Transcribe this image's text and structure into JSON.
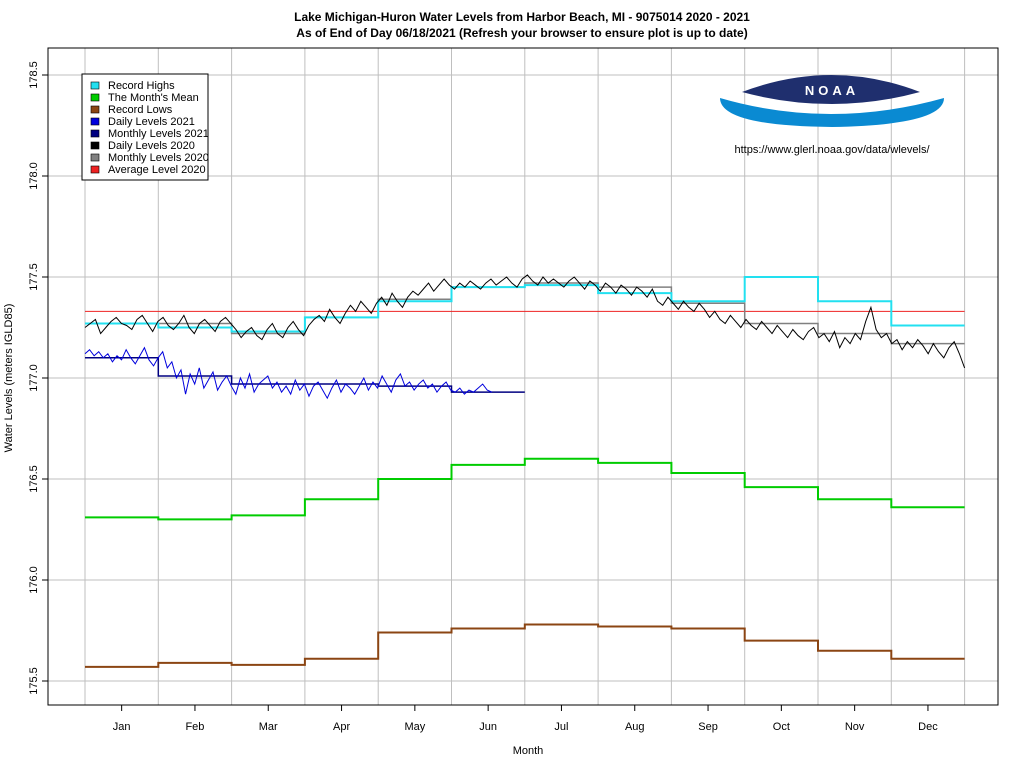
{
  "chart_data": {
    "type": "line",
    "title": "Lake Michigan-Huron Water Levels from Harbor Beach, MI - 9075014 2020 - 2021",
    "subtitle": "As of End of Day 06/18/2021 (Refresh your browser to ensure plot is up to date)",
    "xlabel": "Month",
    "ylabel": "Water Levels (meters IGLD85)",
    "ylim": [
      175.5,
      178.6
    ],
    "yticks": [
      "175.5",
      "176.0",
      "176.5",
      "177.0",
      "177.5",
      "178.0",
      "178.5"
    ],
    "ytick_values": [
      175.5,
      176.0,
      176.5,
      177.0,
      177.5,
      178.0,
      178.5
    ],
    "months": [
      "Jan",
      "Feb",
      "Mar",
      "Apr",
      "May",
      "Jun",
      "Jul",
      "Aug",
      "Sep",
      "Oct",
      "Nov",
      "Dec"
    ],
    "grid": true,
    "legend_placement": "top-left",
    "legend": [
      {
        "label": "Record Highs",
        "color": "#22e0f0"
      },
      {
        "label": "The Month's Mean",
        "color": "#00cc00"
      },
      {
        "label": "Record Lows",
        "color": "#8b4513"
      },
      {
        "label": "Daily Levels 2021",
        "color": "#0000dd"
      },
      {
        "label": "Monthly Levels 2021",
        "color": "#000080"
      },
      {
        "label": "Daily Levels 2020",
        "color": "#000000"
      },
      {
        "label": "Monthly Levels 2020",
        "color": "#808080"
      },
      {
        "label": "Average Level 2020",
        "color": "#ee2222"
      }
    ],
    "series": [
      {
        "name": "Record Highs",
        "color": "#22e0f0",
        "values": [
          177.27,
          177.25,
          177.23,
          177.3,
          177.38,
          177.45,
          177.46,
          177.42,
          177.38,
          177.5,
          177.38,
          177.26
        ]
      },
      {
        "name": "The Month's Mean",
        "color": "#00cc00",
        "values": [
          176.31,
          176.3,
          176.32,
          176.4,
          176.5,
          176.57,
          176.6,
          176.58,
          176.53,
          176.46,
          176.4,
          176.36
        ]
      },
      {
        "name": "Record Lows",
        "color": "#8b4513",
        "values": [
          175.57,
          175.59,
          175.58,
          175.61,
          175.74,
          175.76,
          175.78,
          175.77,
          175.76,
          175.7,
          175.65,
          175.61
        ]
      },
      {
        "name": "Monthly Levels 2021",
        "color": "#000080",
        "values": [
          177.1,
          177.01,
          176.97,
          176.97,
          176.96,
          176.93
        ]
      },
      {
        "name": "Monthly Levels 2020",
        "color": "#808080",
        "values": [
          177.27,
          177.27,
          177.22,
          177.3,
          177.39,
          177.45,
          177.47,
          177.45,
          177.37,
          177.27,
          177.22,
          177.17
        ]
      },
      {
        "name": "Average Level 2020",
        "color": "#ee2222",
        "values": [
          177.33
        ]
      },
      {
        "name": "Daily Levels 2020",
        "color": "#000000",
        "values": [
          177.25,
          177.27,
          177.29,
          177.22,
          177.25,
          177.28,
          177.3,
          177.27,
          177.26,
          177.24,
          177.29,
          177.31,
          177.27,
          177.23,
          177.28,
          177.3,
          177.26,
          177.24,
          177.27,
          177.31,
          177.25,
          177.22,
          177.27,
          177.29,
          177.26,
          177.23,
          177.28,
          177.3,
          177.27,
          177.24,
          177.2,
          177.23,
          177.25,
          177.21,
          177.19,
          177.24,
          177.27,
          177.22,
          177.2,
          177.25,
          177.28,
          177.24,
          177.21,
          177.26,
          177.29,
          177.31,
          177.28,
          177.34,
          177.3,
          177.27,
          177.32,
          177.36,
          177.33,
          177.38,
          177.35,
          177.32,
          177.37,
          177.4,
          177.36,
          177.42,
          177.38,
          177.35,
          177.4,
          177.43,
          177.41,
          177.44,
          177.47,
          177.43,
          177.46,
          177.49,
          177.46,
          177.44,
          177.47,
          177.45,
          177.48,
          177.46,
          177.44,
          177.47,
          177.49,
          177.46,
          177.48,
          177.5,
          177.47,
          177.45,
          177.49,
          177.51,
          177.48,
          177.46,
          177.5,
          177.47,
          177.49,
          177.47,
          177.45,
          177.48,
          177.5,
          177.47,
          177.44,
          177.48,
          177.46,
          177.43,
          177.47,
          177.45,
          177.42,
          177.46,
          177.44,
          177.41,
          177.45,
          177.43,
          177.4,
          177.44,
          177.38,
          177.36,
          177.4,
          177.37,
          177.34,
          177.38,
          177.35,
          177.33,
          177.37,
          177.34,
          177.3,
          177.33,
          177.29,
          177.27,
          177.31,
          177.28,
          177.25,
          177.29,
          177.26,
          177.24,
          177.28,
          177.25,
          177.22,
          177.26,
          177.23,
          177.2,
          177.24,
          177.21,
          177.19,
          177.23,
          177.25,
          177.2,
          177.22,
          177.18,
          177.23,
          177.15,
          177.2,
          177.17,
          177.22,
          177.19,
          177.28,
          177.35,
          177.24,
          177.2,
          177.22,
          177.17,
          177.19,
          177.14,
          177.18,
          177.15,
          177.19,
          177.16,
          177.12,
          177.17,
          177.13,
          177.1,
          177.15,
          177.18,
          177.12,
          177.05
        ]
      },
      {
        "name": "Daily Levels 2021",
        "color": "#0000dd",
        "values": [
          177.12,
          177.14,
          177.11,
          177.13,
          177.1,
          177.12,
          177.08,
          177.11,
          177.09,
          177.14,
          177.1,
          177.07,
          177.11,
          177.15,
          177.09,
          177.06,
          177.1,
          177.13,
          177.05,
          177.08,
          177.0,
          177.04,
          176.92,
          177.02,
          176.97,
          177.05,
          176.95,
          176.99,
          177.03,
          176.94,
          176.98,
          177.01,
          176.96,
          176.92,
          177.0,
          176.95,
          177.02,
          176.93,
          176.97,
          176.99,
          177.01,
          176.95,
          176.98,
          176.93,
          176.96,
          176.92,
          176.99,
          176.94,
          176.97,
          176.91,
          176.96,
          176.98,
          176.94,
          176.9,
          176.95,
          176.99,
          176.93,
          176.97,
          176.95,
          176.92,
          176.96,
          177.0,
          176.94,
          176.98,
          176.95,
          177.01,
          176.97,
          176.93,
          176.99,
          177.02,
          176.96,
          176.98,
          176.94,
          176.97,
          176.99,
          176.95,
          176.97,
          176.93,
          176.96,
          176.98,
          176.94,
          176.93,
          176.95,
          176.92,
          176.94,
          176.93,
          176.95,
          176.97,
          176.94,
          176.93
        ]
      }
    ]
  },
  "logo": {
    "text": "NOAA"
  },
  "source_url": "https://www.glerl.noaa.gov/data/wlevels/"
}
